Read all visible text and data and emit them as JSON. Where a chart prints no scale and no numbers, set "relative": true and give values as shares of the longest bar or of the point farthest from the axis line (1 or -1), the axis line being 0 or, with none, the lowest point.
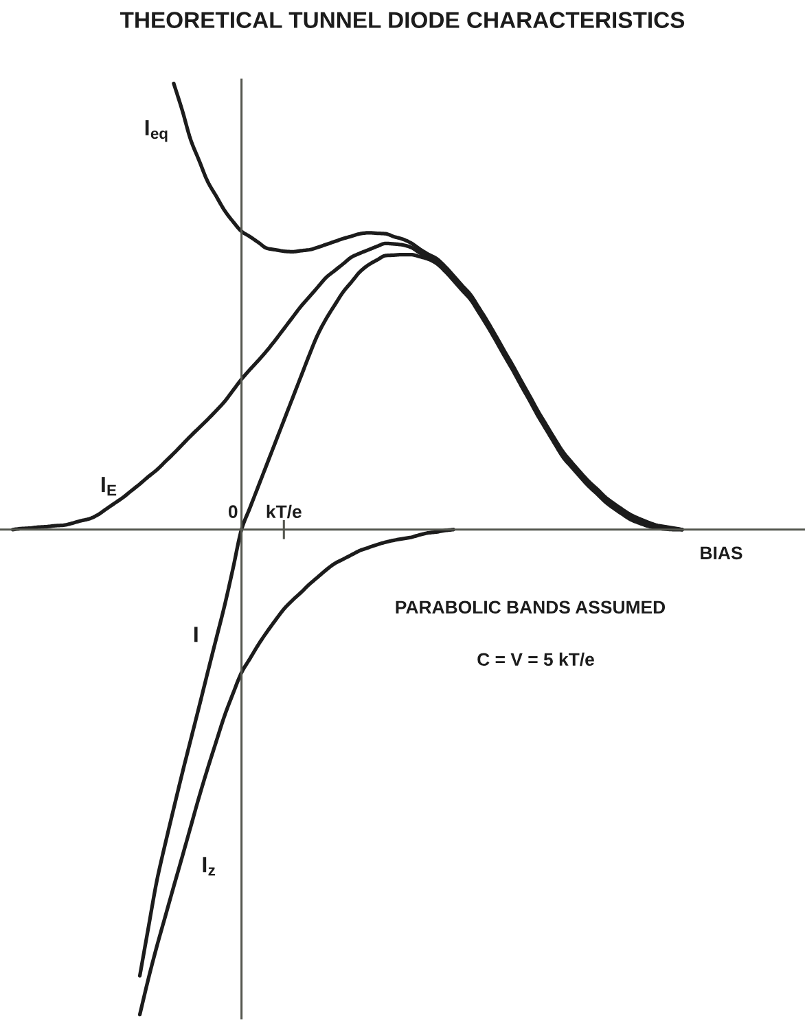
{
  "chart_data": {
    "type": "line",
    "title": "THEORETICAL TUNNEL DIODE CHARACTERISTICS",
    "xlabel": "BIAS",
    "relative": true,
    "tick_labels": "x",
    "grid": false,
    "legend": false,
    "marker": "none",
    "line_style": "solid",
    "categories": [
      null,
      null,
      null,
      null,
      null,
      null,
      null,
      null,
      null,
      null,
      null,
      null,
      null,
      null,
      null,
      null,
      null,
      null,
      null,
      null,
      null,
      null,
      null,
      null,
      null,
      null,
      null,
      "0",
      null,
      null,
      null,
      null,
      null,
      "kT/e",
      null,
      null,
      null,
      null,
      null,
      null,
      null,
      null,
      null,
      null,
      null,
      null,
      null,
      null,
      null,
      null,
      null,
      null,
      null,
      null,
      null,
      null,
      null,
      null,
      null,
      null,
      null,
      null,
      null,
      null,
      null,
      null,
      null,
      null,
      null,
      null,
      null,
      null,
      null,
      null,
      null,
      null,
      null,
      null,
      null,
      null,
      null,
      null,
      null,
      null,
      null,
      null,
      null,
      null,
      null,
      null,
      null,
      null,
      null,
      null,
      null
    ],
    "annotations": [
      "PARABOLIC BANDS ASSUMED",
      "C = V = 5 kT/e"
    ],
    "series": [
      {
        "name": "I$_{eq}$",
        "color": "#1c1c1c",
        "values": [
          null,
          null,
          null,
          null,
          null,
          null,
          null,
          null,
          null,
          null,
          null,
          null,
          null,
          null,
          null,
          null,
          null,
          null,
          null,
          null,
          0.92,
          0.865,
          0.804,
          0.761,
          0.718,
          0.688,
          0.658,
          0.635,
          0.615,
          0.604,
          0.592,
          0.58,
          0.577,
          0.574,
          0.573,
          0.575,
          0.577,
          0.582,
          0.588,
          0.594,
          0.6,
          0.605,
          0.61,
          0.612,
          0.611,
          0.61,
          0.604,
          0.599,
          0.591,
          0.579,
          0.568,
          0.559,
          0.543,
          0.524,
          0.504,
          0.485,
          0.458,
          0.43,
          0.4,
          0.369,
          0.339,
          0.307,
          0.276,
          0.244,
          0.215,
          0.186,
          0.159,
          0.138,
          0.118,
          0.099,
          0.083,
          0.066,
          0.053,
          0.041,
          0.03,
          0.022,
          0.015,
          0.009,
          0.006,
          0.003,
          0,
          null,
          null,
          null,
          null,
          null,
          null,
          null,
          null,
          null,
          null,
          null,
          null,
          null,
          null
        ]
      },
      {
        "name": "I$_{E}$",
        "color": "#1c1c1c",
        "values": [
          null,
          0,
          0.002,
          0.003,
          0.005,
          0.006,
          0.008,
          0.009,
          0.013,
          0.018,
          0.022,
          0.03,
          0.042,
          0.054,
          0.066,
          0.08,
          0.094,
          0.109,
          0.123,
          0.14,
          0.157,
          0.175,
          0.193,
          0.21,
          0.227,
          0.245,
          0.264,
          0.287,
          0.31,
          0.33,
          0.349,
          0.369,
          0.391,
          0.414,
          0.437,
          0.46,
          0.48,
          0.5,
          0.52,
          0.534,
          0.548,
          0.562,
          0.57,
          0.577,
          0.584,
          0.59,
          0.589,
          0.587,
          0.582,
          0.571,
          0.561,
          0.553,
          0.538,
          0.519,
          0.499,
          0.48,
          0.453,
          0.425,
          0.395,
          0.364,
          0.334,
          0.302,
          0.271,
          0.239,
          0.21,
          0.181,
          0.153,
          0.133,
          0.113,
          0.094,
          0.078,
          0.061,
          0.048,
          0.036,
          0.025,
          0.018,
          0.012,
          0.007,
          0.005,
          0.002,
          0,
          null,
          null,
          null,
          null,
          null,
          null,
          null,
          null,
          null,
          null,
          null,
          null,
          null,
          null
        ]
      },
      {
        "name": "I",
        "color": "#1c1c1c",
        "values": [
          null,
          null,
          null,
          null,
          null,
          null,
          null,
          null,
          null,
          null,
          null,
          null,
          null,
          null,
          null,
          null,
          -0.92,
          -0.822,
          -0.725,
          -0.648,
          -0.575,
          -0.503,
          -0.434,
          -0.365,
          -0.295,
          -0.226,
          -0.157,
          -0.08,
          0,
          0.045,
          0.09,
          0.135,
          0.18,
          0.225,
          0.27,
          0.315,
          0.36,
          0.402,
          0.435,
          0.463,
          0.49,
          0.511,
          0.532,
          0.546,
          0.556,
          0.565,
          0.566,
          0.567,
          0.567,
          0.563,
          0.558,
          0.549,
          0.533,
          0.514,
          0.494,
          0.475,
          0.448,
          0.42,
          0.39,
          0.359,
          0.329,
          0.297,
          0.266,
          0.234,
          0.205,
          0.176,
          0.148,
          0.128,
          0.108,
          0.089,
          0.073,
          0.056,
          0.043,
          0.031,
          0.02,
          0.013,
          0.007,
          0.003,
          0.001,
          0,
          0,
          null,
          null,
          null,
          null,
          null,
          null,
          null,
          null,
          null,
          null,
          null,
          null,
          null,
          null
        ]
      },
      {
        "name": "I$_{z}$",
        "color": "#1c1c1c",
        "values": [
          null,
          null,
          null,
          null,
          null,
          null,
          null,
          null,
          null,
          null,
          null,
          null,
          null,
          null,
          null,
          null,
          -1,
          -0.927,
          -0.86,
          -0.798,
          -0.736,
          -0.675,
          -0.613,
          -0.551,
          -0.493,
          -0.438,
          -0.384,
          -0.338,
          -0.295,
          -0.266,
          -0.237,
          -0.211,
          -0.187,
          -0.164,
          -0.146,
          -0.13,
          -0.113,
          -0.098,
          -0.083,
          -0.07,
          -0.061,
          -0.052,
          -0.043,
          -0.037,
          -0.031,
          -0.026,
          -0.022,
          -0.019,
          -0.016,
          -0.011,
          -0.007,
          -0.005,
          -0.002,
          0,
          null,
          null,
          null,
          null,
          null,
          null,
          null,
          null,
          null,
          null,
          null,
          null,
          null,
          null,
          null,
          null,
          null,
          null,
          null,
          null,
          null,
          null,
          null,
          null,
          null,
          null,
          null,
          null,
          null,
          null,
          null,
          null,
          null,
          null,
          null,
          null,
          null,
          null,
          null,
          null,
          null
        ]
      }
    ]
  }
}
